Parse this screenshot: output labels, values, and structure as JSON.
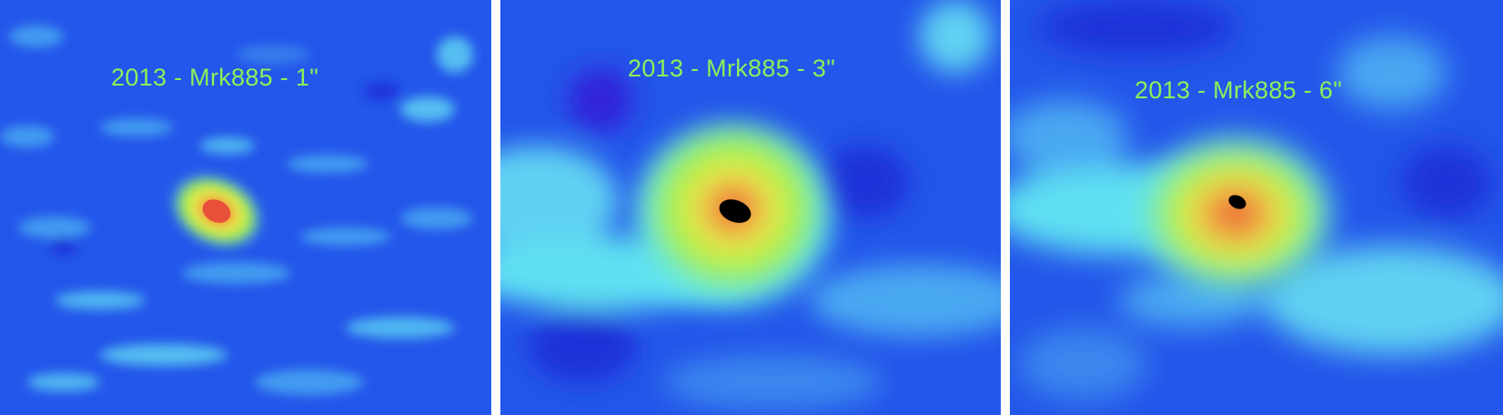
{
  "panels": [
    {
      "label": "2013 - Mrk885 - 1\""
    },
    {
      "label": "2013 - Mrk885 - 3\""
    },
    {
      "label": "2013 - Mrk885 - 6\""
    }
  ],
  "colors": {
    "background_blue": "#1f4fe6",
    "cyan": "#5fe8f0",
    "green": "#9cf046",
    "yellow": "#f0e850",
    "orange": "#f08a3a",
    "red": "#e8503a",
    "core": "#000000",
    "label": "#8cf05a"
  }
}
